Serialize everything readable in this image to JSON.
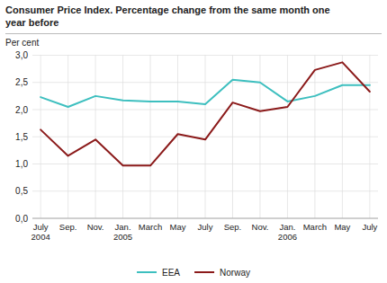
{
  "chart_data": {
    "type": "line",
    "title": "Consumer Price Index. Percentage change from the same month one\nyear before",
    "y_label": "Per cent",
    "categories": [
      "July\n2004",
      "Sep.",
      "Nov.",
      "Jan.\n2005",
      "March",
      "May",
      "July",
      "Sep.",
      "Nov.",
      "Jan.\n2006",
      "March",
      "May",
      "July"
    ],
    "series": [
      {
        "name": "EEA",
        "color": "#3DBFBF",
        "values": [
          2.23,
          2.05,
          2.25,
          2.17,
          2.15,
          2.15,
          2.1,
          2.55,
          2.5,
          2.15,
          2.25,
          2.45,
          2.45
        ]
      },
      {
        "name": "Norway",
        "color": "#8B1A1A",
        "values": [
          1.63,
          1.15,
          1.45,
          0.97,
          0.97,
          1.55,
          1.45,
          2.13,
          1.97,
          2.05,
          2.73,
          2.87,
          2.33
        ]
      }
    ],
    "ylim": [
      0.0,
      3.0
    ],
    "yticks": [
      {
        "value": 0.0,
        "label": "0,0"
      },
      {
        "value": 0.5,
        "label": "0,5"
      },
      {
        "value": 1.0,
        "label": "1,0"
      },
      {
        "value": 1.5,
        "label": "1,5"
      },
      {
        "value": 2.0,
        "label": "2,0"
      },
      {
        "value": 2.5,
        "label": "2,5"
      },
      {
        "value": 3.0,
        "label": "3,0"
      }
    ],
    "grid": true,
    "legend": "bottom"
  }
}
